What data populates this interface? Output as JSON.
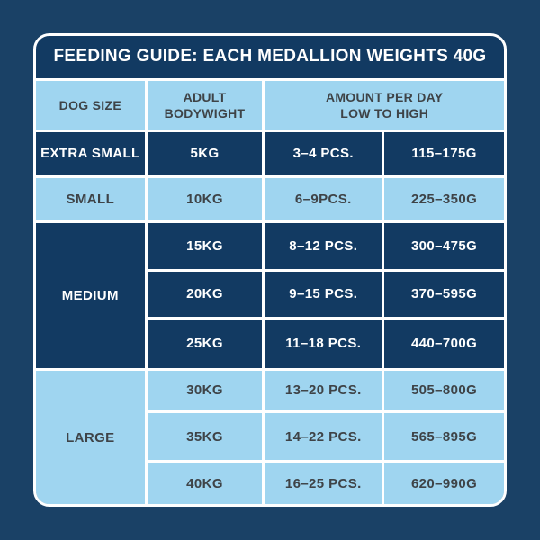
{
  "page": {
    "background": "#1A4166"
  },
  "table": {
    "title": "FEEDING GUIDE: EACH MEDALLION WEIGHTS 40G",
    "header": {
      "dog_size": "DOG SIZE",
      "bodyweight_line1": "ADULT",
      "bodyweight_line2": "BODYWIGHT",
      "amount_line1": "AMOUNT PER DAY",
      "amount_line2": "LOW TO HIGH"
    },
    "groups": [
      {
        "size": "EXTRA SMALL",
        "theme": "dark",
        "rows": [
          {
            "weight": "5KG",
            "pieces": "3–4 PCS.",
            "grams": "115–175G"
          }
        ]
      },
      {
        "size": "SMALL",
        "theme": "light",
        "rows": [
          {
            "weight": "10KG",
            "pieces": "6–9PCS.",
            "grams": "225–350G"
          }
        ]
      },
      {
        "size": "MEDIUM",
        "theme": "dark",
        "rows": [
          {
            "weight": "15KG",
            "pieces": "8–12 PCS.",
            "grams": "300–475G"
          },
          {
            "weight": "20KG",
            "pieces": "9–15 PCS.",
            "grams": "370–595G"
          },
          {
            "weight": "25KG",
            "pieces": "11–18 PCS.",
            "grams": "440–700G"
          }
        ]
      },
      {
        "size": "LARGE",
        "theme": "light",
        "rows": [
          {
            "weight": "30KG",
            "pieces": "13–20 PCS.",
            "grams": "505–800G"
          },
          {
            "weight": "35KG",
            "pieces": "14–22 PCS.",
            "grams": "565–895G"
          },
          {
            "weight": "40KG",
            "pieces": "16–25 PCS.",
            "grams": "620–990G"
          }
        ]
      }
    ]
  },
  "colors": {
    "page_bg": "#1A4166",
    "navy": "#123A62",
    "light_blue": "#9FD5F0",
    "grid_line": "#FFFFFF",
    "text_dark": "#3E4347",
    "text_light": "#FFFFFF"
  },
  "chart_data": {
    "type": "table",
    "title": "FEEDING GUIDE: EACH MEDALLION WEIGHTS 40G",
    "medallion_weight_g": 40,
    "columns": [
      "DOG SIZE",
      "ADULT BODYWIGHT",
      "AMOUNT PER DAY LOW TO HIGH (PIECES)",
      "AMOUNT PER DAY LOW TO HIGH (GRAMS)"
    ],
    "rows": [
      [
        "EXTRA SMALL",
        "5KG",
        "3–4 PCS.",
        "115–175G"
      ],
      [
        "SMALL",
        "10KG",
        "6–9PCS.",
        "225–350G"
      ],
      [
        "MEDIUM",
        "15KG",
        "8–12 PCS.",
        "300–475G"
      ],
      [
        "MEDIUM",
        "20KG",
        "9–15 PCS.",
        "370–595G"
      ],
      [
        "MEDIUM",
        "25KG",
        "11–18 PCS.",
        "440–700G"
      ],
      [
        "LARGE",
        "30KG",
        "13–20 PCS.",
        "505–800G"
      ],
      [
        "LARGE",
        "35KG",
        "14–22 PCS.",
        "565–895G"
      ],
      [
        "LARGE",
        "40KG",
        "16–25 PCS.",
        "620–990G"
      ]
    ]
  }
}
